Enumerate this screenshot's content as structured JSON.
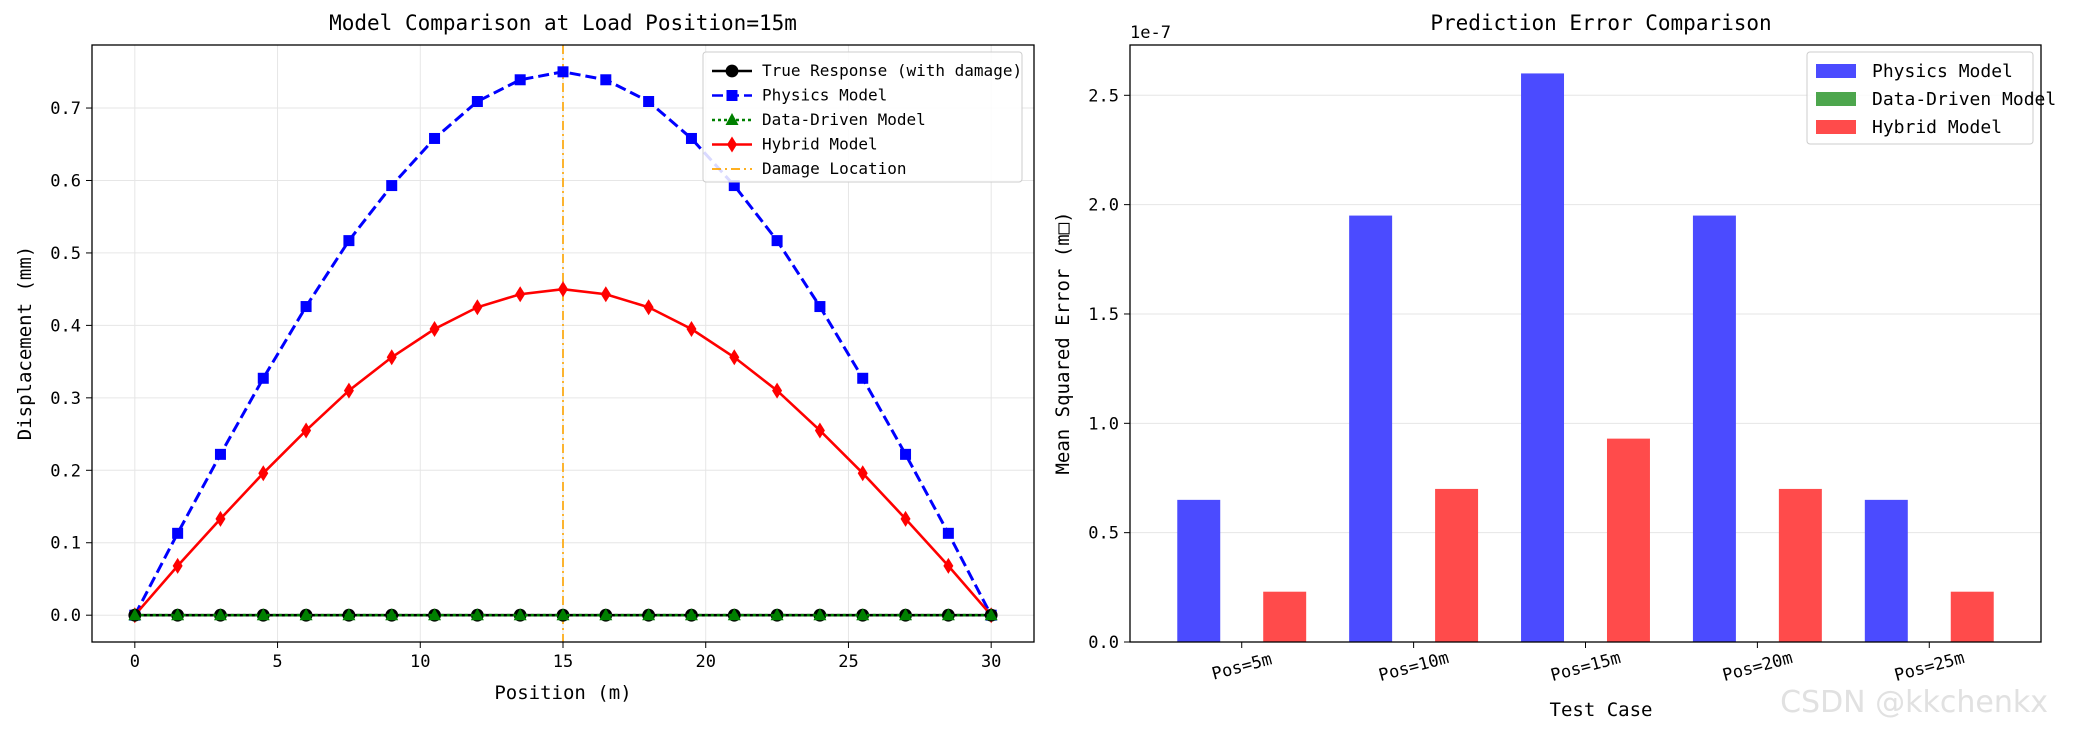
{
  "chart_data": [
    {
      "type": "line",
      "title": "Model Comparison at Load Position=15m",
      "xlabel": "Position (m)",
      "ylabel": "Displacement (mm)",
      "xlim": [
        -1.5,
        31.5
      ],
      "ylim": [
        -0.037,
        0.787
      ],
      "xticks": [
        0,
        5,
        10,
        15,
        20,
        25,
        30
      ],
      "yticks": [
        0.0,
        0.1,
        0.2,
        0.3,
        0.4,
        0.5,
        0.6,
        0.7
      ],
      "grid": true,
      "legend_position": "top-right",
      "x": [
        0,
        1.5,
        3,
        4.5,
        6,
        7.5,
        9,
        10.5,
        12,
        13.5,
        15,
        16.5,
        18,
        19.5,
        21,
        22.5,
        24,
        25.5,
        27,
        28.5,
        30
      ],
      "series": [
        {
          "name": "True Response (with damage)",
          "color": "#000000",
          "style": "solid",
          "marker": "circle",
          "values": [
            0,
            0,
            0,
            0,
            0,
            0,
            0,
            0,
            0,
            0,
            0,
            0,
            0,
            0,
            0,
            0,
            0,
            0,
            0,
            0,
            0
          ]
        },
        {
          "name": "Physics Model",
          "color": "#0000ff",
          "style": "dashed",
          "marker": "square",
          "values": [
            0,
            0.113,
            0.222,
            0.327,
            0.426,
            0.517,
            0.593,
            0.658,
            0.709,
            0.739,
            0.75,
            0.739,
            0.709,
            0.658,
            0.593,
            0.517,
            0.426,
            0.327,
            0.222,
            0.113,
            0
          ]
        },
        {
          "name": "Data-Driven Model",
          "color": "#008000",
          "style": "dotted",
          "marker": "triangle-up",
          "values": [
            0,
            0,
            0,
            0,
            0,
            0,
            0,
            0,
            0,
            0,
            0,
            0,
            0,
            0,
            0,
            0,
            0,
            0,
            0,
            0,
            0
          ]
        },
        {
          "name": "Hybrid Model",
          "color": "#ff0000",
          "style": "solid",
          "marker": "diamond",
          "values": [
            0,
            0.068,
            0.133,
            0.196,
            0.255,
            0.31,
            0.356,
            0.395,
            0.425,
            0.443,
            0.45,
            0.443,
            0.425,
            0.395,
            0.356,
            0.31,
            0.255,
            0.196,
            0.133,
            0.068,
            0
          ]
        }
      ],
      "vline": {
        "name": "Damage Location",
        "x": 15,
        "color": "#ffa500",
        "style": "dashdot"
      }
    },
    {
      "type": "bar",
      "title": "Prediction Error Comparison",
      "xlabel": "Test Case",
      "ylabel": "Mean Squared Error (m□)",
      "offset_text": "1e-7",
      "ylim": [
        0,
        2.73
      ],
      "yticks": [
        0.0,
        0.5,
        1.0,
        1.5,
        2.0,
        2.5
      ],
      "grid": true,
      "legend_position": "top-right",
      "categories": [
        "Pos=5m",
        "Pos=10m",
        "Pos=15m",
        "Pos=20m",
        "Pos=25m"
      ],
      "series": [
        {
          "name": "Physics Model",
          "color": "#4b4bff",
          "values": [
            0.65,
            1.95,
            2.6,
            1.95,
            0.65
          ]
        },
        {
          "name": "Data-Driven Model",
          "color": "#4da64d",
          "values": [
            0,
            0,
            0,
            0,
            0
          ]
        },
        {
          "name": "Hybrid Model",
          "color": "#ff4b4b",
          "values": [
            0.23,
            0.7,
            0.93,
            0.7,
            0.23
          ]
        }
      ]
    }
  ],
  "watermark": "CSDN @kkchenkx"
}
